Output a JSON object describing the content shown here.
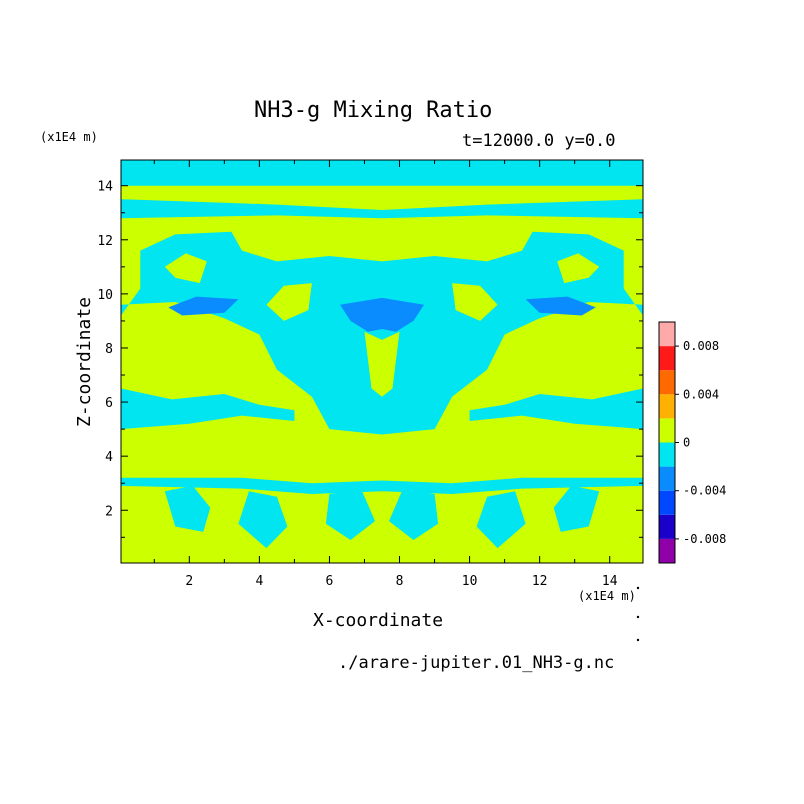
{
  "chart_data": {
    "type": "heatmap",
    "title": "NH3-g Mixing Ratio",
    "subtitle": "t=12000.0 y=0.0",
    "xlabel": "X-coordinate",
    "ylabel": "Z-coordinate",
    "x_unit": "(x1E4 m)",
    "y_unit": "(x1E4 m)",
    "xlim": [
      0.05,
      14.95
    ],
    "ylim": [
      0.05,
      14.95
    ],
    "x_ticks": [
      2,
      4,
      6,
      8,
      10,
      12,
      14
    ],
    "y_ticks": [
      2,
      4,
      6,
      8,
      10,
      12,
      14
    ],
    "colorbar": {
      "levels": [
        -0.01,
        -0.008,
        -0.006,
        -0.004,
        -0.002,
        0.0,
        0.002,
        0.004,
        0.006,
        0.008,
        0.01
      ],
      "colors": [
        "#8f00a8",
        "#1a00c8",
        "#0048ff",
        "#0a8cff",
        "#00e5f0",
        "#ccff00",
        "#ffb000",
        "#ff6a00",
        "#ff1a1a",
        "#ffaaaa"
      ],
      "tick_values": [
        0.008,
        0.004,
        0,
        -0.004,
        -0.008
      ],
      "tick_labels": [
        "0.008",
        "0.004",
        "0",
        "-0.004",
        "-0.008"
      ]
    },
    "background_value": 0.001,
    "regions": [
      {
        "value": -0.001,
        "polygon": [
          [
            0.05,
            14.95
          ],
          [
            14.95,
            14.95
          ],
          [
            14.95,
            14.0
          ],
          [
            0.05,
            14.0
          ]
        ]
      },
      {
        "value": -0.001,
        "polygon": [
          [
            0.05,
            13.5
          ],
          [
            4.5,
            13.3
          ],
          [
            7.5,
            13.1
          ],
          [
            10.5,
            13.3
          ],
          [
            14.95,
            13.5
          ],
          [
            14.95,
            12.8
          ],
          [
            10.5,
            12.9
          ],
          [
            7.5,
            12.8
          ],
          [
            4.5,
            12.9
          ],
          [
            0.05,
            12.8
          ]
        ]
      },
      {
        "value": -0.001,
        "polygon": [
          [
            0.05,
            9.2
          ],
          [
            0.6,
            10.2
          ],
          [
            0.6,
            11.6
          ],
          [
            1.6,
            12.2
          ],
          [
            3.2,
            12.3
          ],
          [
            3.5,
            11.6
          ],
          [
            4.5,
            11.2
          ],
          [
            6.0,
            11.4
          ],
          [
            7.5,
            11.2
          ],
          [
            9.0,
            11.4
          ],
          [
            10.5,
            11.2
          ],
          [
            11.5,
            11.6
          ],
          [
            11.8,
            12.3
          ],
          [
            13.4,
            12.2
          ],
          [
            14.4,
            11.6
          ],
          [
            14.4,
            10.2
          ],
          [
            14.95,
            9.2
          ],
          [
            14.95,
            9.6
          ],
          [
            13.4,
            9.7
          ],
          [
            12.0,
            9.1
          ],
          [
            11.0,
            8.5
          ],
          [
            10.5,
            7.2
          ],
          [
            9.5,
            6.2
          ],
          [
            9.0,
            5.0
          ],
          [
            7.5,
            4.8
          ],
          [
            6.0,
            5.0
          ],
          [
            5.5,
            6.2
          ],
          [
            4.5,
            7.2
          ],
          [
            4.0,
            8.5
          ],
          [
            3.0,
            9.1
          ],
          [
            1.6,
            9.7
          ],
          [
            0.05,
            9.6
          ]
        ]
      },
      {
        "value": -0.001,
        "polygon": [
          [
            0.05,
            6.5
          ],
          [
            1.5,
            6.1
          ],
          [
            3.0,
            6.3
          ],
          [
            4.0,
            5.9
          ],
          [
            5.0,
            5.7
          ],
          [
            5.0,
            5.3
          ],
          [
            3.5,
            5.5
          ],
          [
            2.0,
            5.2
          ],
          [
            0.05,
            5.0
          ]
        ]
      },
      {
        "value": -0.001,
        "polygon": [
          [
            14.95,
            6.5
          ],
          [
            13.5,
            6.1
          ],
          [
            12.0,
            6.3
          ],
          [
            11.0,
            5.9
          ],
          [
            10.0,
            5.7
          ],
          [
            10.0,
            5.3
          ],
          [
            11.5,
            5.5
          ],
          [
            13.0,
            5.2
          ],
          [
            14.95,
            5.0
          ]
        ]
      },
      {
        "value": -0.001,
        "polygon": [
          [
            0.05,
            3.2
          ],
          [
            3.5,
            3.2
          ],
          [
            5.5,
            3.0
          ],
          [
            7.5,
            3.1
          ],
          [
            9.5,
            3.0
          ],
          [
            11.5,
            3.2
          ],
          [
            14.95,
            3.2
          ],
          [
            14.95,
            2.9
          ],
          [
            11.5,
            2.8
          ],
          [
            9.5,
            2.6
          ],
          [
            7.5,
            2.7
          ],
          [
            5.5,
            2.6
          ],
          [
            3.5,
            2.8
          ],
          [
            0.05,
            2.9
          ]
        ]
      },
      {
        "value": -0.001,
        "polygon": [
          [
            6.0,
            2.6
          ],
          [
            6.9,
            2.8
          ],
          [
            7.3,
            1.6
          ],
          [
            6.6,
            0.9
          ],
          [
            5.9,
            1.5
          ]
        ]
      },
      {
        "value": -0.001,
        "polygon": [
          [
            9.0,
            2.6
          ],
          [
            8.1,
            2.8
          ],
          [
            7.7,
            1.6
          ],
          [
            8.4,
            0.9
          ],
          [
            9.1,
            1.5
          ]
        ]
      },
      {
        "value": -0.001,
        "polygon": [
          [
            1.3,
            2.7
          ],
          [
            2.1,
            2.9
          ],
          [
            2.6,
            2.1
          ],
          [
            2.4,
            1.2
          ],
          [
            1.6,
            1.4
          ]
        ]
      },
      {
        "value": -0.001,
        "polygon": [
          [
            13.7,
            2.7
          ],
          [
            12.9,
            2.9
          ],
          [
            12.4,
            2.1
          ],
          [
            12.6,
            1.2
          ],
          [
            13.4,
            1.4
          ]
        ]
      },
      {
        "value": -0.001,
        "polygon": [
          [
            10.5,
            2.5
          ],
          [
            11.3,
            2.7
          ],
          [
            11.6,
            1.5
          ],
          [
            10.8,
            0.6
          ],
          [
            10.2,
            1.4
          ]
        ]
      },
      {
        "value": -0.001,
        "polygon": [
          [
            4.5,
            2.5
          ],
          [
            3.7,
            2.7
          ],
          [
            3.4,
            1.5
          ],
          [
            4.2,
            0.6
          ],
          [
            4.8,
            1.4
          ]
        ]
      },
      {
        "value": -0.003,
        "polygon": [
          [
            1.4,
            9.5
          ],
          [
            2.2,
            9.9
          ],
          [
            3.4,
            9.8
          ],
          [
            3.0,
            9.3
          ],
          [
            1.8,
            9.2
          ]
        ]
      },
      {
        "value": -0.003,
        "polygon": [
          [
            13.6,
            9.5
          ],
          [
            12.8,
            9.9
          ],
          [
            11.6,
            9.8
          ],
          [
            12.0,
            9.3
          ],
          [
            13.2,
            9.2
          ]
        ]
      },
      {
        "value": -0.003,
        "polygon": [
          [
            6.3,
            9.6
          ],
          [
            7.5,
            9.85
          ],
          [
            8.7,
            9.6
          ],
          [
            8.4,
            9.0
          ],
          [
            7.9,
            8.6
          ],
          [
            7.5,
            8.7
          ],
          [
            7.1,
            8.6
          ],
          [
            6.6,
            9.0
          ]
        ]
      },
      {
        "value": 0.001,
        "polygon": [
          [
            4.2,
            9.6
          ],
          [
            4.7,
            10.3
          ],
          [
            5.5,
            10.4
          ],
          [
            5.4,
            9.4
          ],
          [
            4.7,
            9.0
          ]
        ]
      },
      {
        "value": 0.001,
        "polygon": [
          [
            10.8,
            9.6
          ],
          [
            10.3,
            10.3
          ],
          [
            9.5,
            10.4
          ],
          [
            9.6,
            9.4
          ],
          [
            10.3,
            9.0
          ]
        ]
      },
      {
        "value": 0.001,
        "polygon": [
          [
            7.0,
            8.6
          ],
          [
            7.5,
            8.3
          ],
          [
            8.0,
            8.6
          ],
          [
            7.8,
            6.5
          ],
          [
            7.5,
            6.2
          ],
          [
            7.2,
            6.5
          ]
        ]
      },
      {
        "value": 0.001,
        "polygon": [
          [
            1.3,
            11.0
          ],
          [
            1.9,
            11.5
          ],
          [
            2.5,
            11.2
          ],
          [
            2.3,
            10.4
          ],
          [
            1.6,
            10.6
          ]
        ]
      },
      {
        "value": 0.001,
        "polygon": [
          [
            13.7,
            11.0
          ],
          [
            13.1,
            11.5
          ],
          [
            12.5,
            11.2
          ],
          [
            12.7,
            10.4
          ],
          [
            13.4,
            10.6
          ]
        ]
      }
    ]
  },
  "source_file": "./arare-jupiter.01_NH3-g.nc"
}
